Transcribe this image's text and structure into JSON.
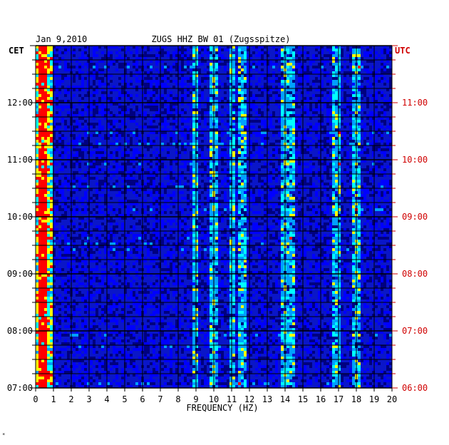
{
  "chart_data": {
    "type": "heatmap",
    "date_label": "Jan 9,2010",
    "title": "ZUGS HHZ BW 01 (Zugsspitze)",
    "left_axis_title": "CET",
    "right_axis_title": "UTC",
    "xlabel": "FREQUENCY (HZ)",
    "x_ticks": [
      0,
      1,
      2,
      3,
      4,
      5,
      6,
      7,
      8,
      9,
      10,
      11,
      12,
      13,
      14,
      15,
      16,
      17,
      18,
      19,
      20
    ],
    "xlim": [
      0,
      20
    ],
    "left_time_ticks": [
      "12:00",
      "11:00",
      "10:00",
      "09:00",
      "08:00",
      "07:00"
    ],
    "right_time_ticks": [
      "11:00",
      "10:00",
      "09:00",
      "08:00",
      "07:00",
      "06:00"
    ],
    "time_range_cet": [
      "07:00",
      "12:50"
    ],
    "colormap": [
      "#000080",
      "#0000ff",
      "#00a0ff",
      "#00ffff",
      "#ffff00",
      "#ff0000"
    ],
    "background_color": "#0a16c8",
    "spectral_lines_hz": [
      0.4,
      9.0,
      10.0,
      11.0,
      11.6,
      13.9,
      14.3,
      16.9,
      18.0
    ],
    "grid": true
  },
  "footnote": "*"
}
